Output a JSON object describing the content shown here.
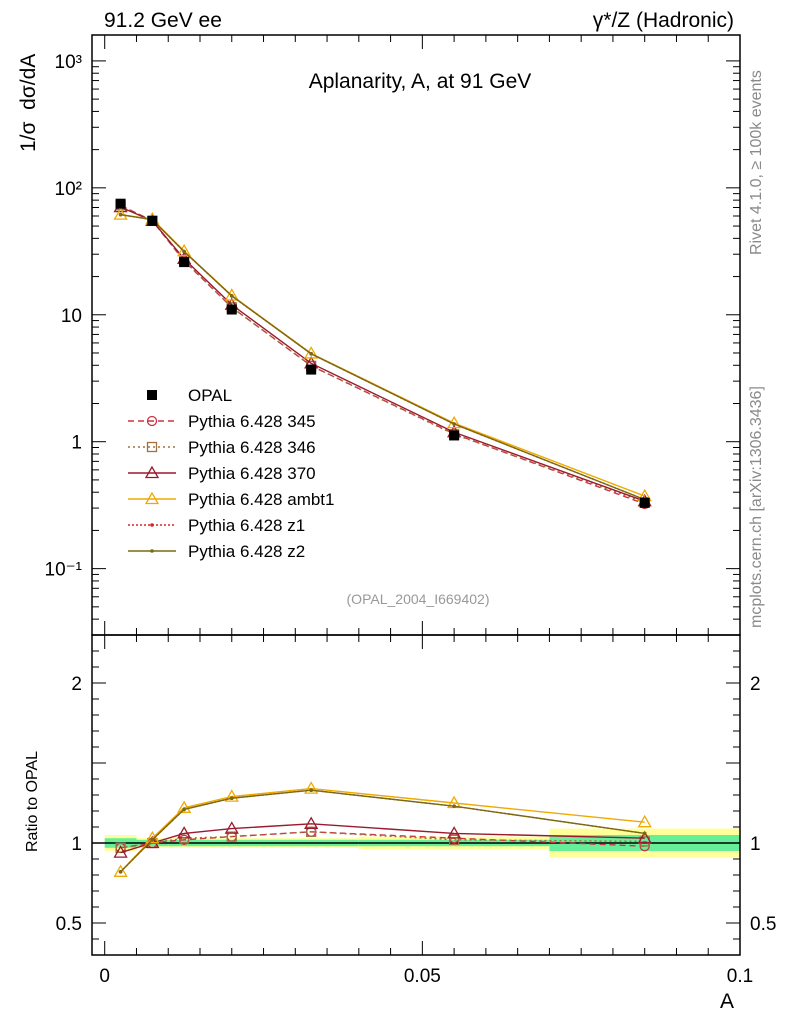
{
  "header": {
    "left": "91.2 GeV ee",
    "right": "γ*/Z (Hadronic)"
  },
  "side": {
    "top": "Rivet 4.1.0, ≥ 100k events",
    "bottom": "mcplots.cern.ch [arXiv:1306.3436]"
  },
  "chart_data": {
    "type": "line",
    "title": "Aplanarity, A, at 91 GeV",
    "watermark": "(OPAL_2004_I669402)",
    "xlabel": "A",
    "ylabel": "1/σ  dσ/dA",
    "ratio_ylabel": "Ratio to OPAL",
    "xlim": [
      -0.002,
      0.1
    ],
    "ylim": [
      0.03,
      1600
    ],
    "ratio_ylim": [
      0.3,
      2.3
    ],
    "x_ticks": [
      {
        "v": 0,
        "label": "0"
      },
      {
        "v": 0.05,
        "label": "0.05"
      },
      {
        "v": 0.1,
        "label": "0.1"
      }
    ],
    "y_ticks": [
      {
        "v": 1000,
        "label": "10³"
      },
      {
        "v": 100,
        "label": "10²"
      },
      {
        "v": 10,
        "label": "10"
      },
      {
        "v": 1,
        "label": "1"
      },
      {
        "v": 0.1,
        "label": "10⁻¹"
      }
    ],
    "ratio_ticks": [
      {
        "v": 2,
        "label": "2"
      },
      {
        "v": 1,
        "label": "1"
      },
      {
        "v": 0.5,
        "label": "0.5"
      }
    ],
    "x": [
      0.0025,
      0.0075,
      0.0125,
      0.02,
      0.0325,
      0.055,
      0.085
    ],
    "bin_edges": [
      0,
      0.005,
      0.01,
      0.015,
      0.025,
      0.04,
      0.07,
      0.1
    ],
    "data": {
      "name": "OPAL",
      "values": [
        75,
        55,
        26,
        11,
        3.7,
        1.12,
        0.33
      ],
      "band_inner": [
        0.03,
        0.02,
        0.02,
        0.02,
        0.02,
        0.02,
        0.05
      ],
      "band_outer": [
        0.05,
        0.03,
        0.03,
        0.03,
        0.03,
        0.04,
        0.09
      ]
    },
    "series": [
      {
        "name": "Pythia 6.428 345",
        "color": "#cc3344",
        "dash": "6,4",
        "marker": "circle",
        "ratio": [
          0.97,
          1.0,
          1.02,
          1.04,
          1.07,
          1.03,
          0.98
        ]
      },
      {
        "name": "Pythia 6.428 346",
        "color": "#a07040",
        "dash": "2,3",
        "marker": "square",
        "ratio": [
          0.97,
          1.0,
          1.03,
          1.04,
          1.07,
          1.02,
          1.01
        ]
      },
      {
        "name": "Pythia 6.428 370",
        "color": "#991a2e",
        "dash": "",
        "marker": "triangle",
        "ratio": [
          0.94,
          1.0,
          1.06,
          1.09,
          1.12,
          1.06,
          1.03
        ]
      },
      {
        "name": "Pythia 6.428 ambt1",
        "color": "#eeaa00",
        "dash": "",
        "marker": "triangle",
        "ratio": [
          0.82,
          1.03,
          1.22,
          1.29,
          1.34,
          1.25,
          1.13
        ]
      },
      {
        "name": "Pythia 6.428 z1",
        "color": "#dd2222",
        "dash": "2,2",
        "marker": "dot",
        "ratio": [
          0.82,
          1.02,
          1.21,
          1.28,
          1.33,
          1.23,
          1.06
        ]
      },
      {
        "name": "Pythia 6.428 z2",
        "color": "#7a6a10",
        "dash": "",
        "marker": "dot",
        "ratio": [
          0.82,
          1.02,
          1.21,
          1.28,
          1.33,
          1.23,
          1.06
        ]
      }
    ]
  }
}
